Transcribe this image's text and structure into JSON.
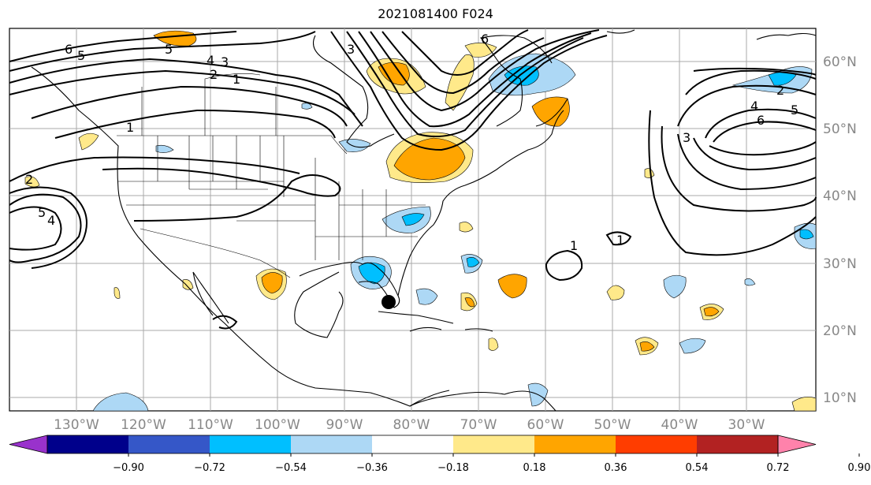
{
  "title": "2021081400 F024",
  "latitude_labels": [
    "60°N",
    "50°N",
    "40°N",
    "30°N",
    "20°N",
    "10°N"
  ],
  "longitude_labels": [
    "130°W",
    "120°W",
    "110°W",
    "100°W",
    "90°W",
    "80°W",
    "70°W",
    "60°W",
    "50°W",
    "40°W",
    "30°W"
  ],
  "colorbar": {
    "tick_labels": [
      "−0.90",
      "−0.72",
      "−0.54",
      "−0.36",
      "−0.18",
      "0.18",
      "0.36",
      "0.54",
      "0.72",
      "0.90"
    ],
    "colors": [
      "#9932cc",
      "#00008b",
      "#3557c8",
      "#00bfff",
      "#add8f5",
      "#ffffff",
      "#ffe98a",
      "#ffa500",
      "#ff3d00",
      "#b22222",
      "#ff82ab"
    ]
  },
  "contour_labels": [
    "6",
    "5",
    "4",
    "3",
    "2",
    "1",
    "1",
    "2",
    "3",
    "4",
    "5",
    "6",
    "5",
    "4",
    "1",
    "1",
    "5",
    "6",
    "3",
    "2"
  ],
  "colors": {
    "positive_fill": "#ffa500",
    "positive_light": "#ffe98a",
    "negative_fill": "#00bfff",
    "negative_light": "#add8f5"
  }
}
